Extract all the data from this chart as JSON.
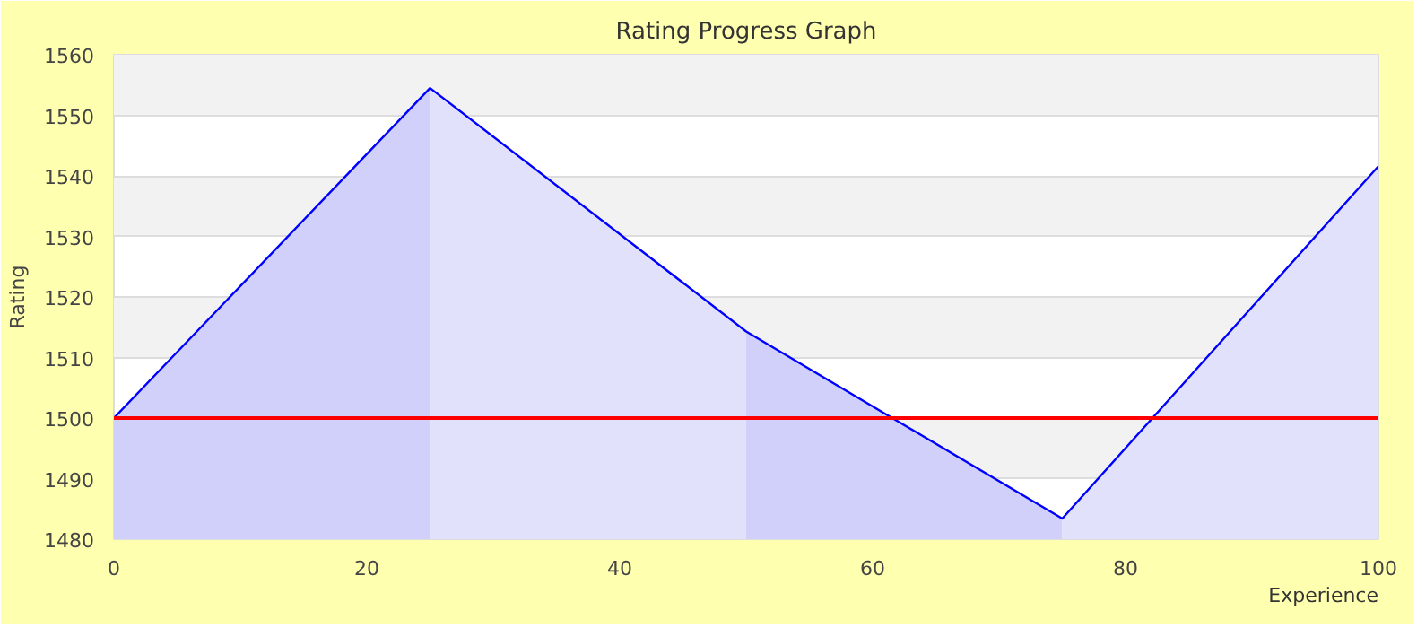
{
  "chart_data": {
    "type": "line",
    "title": "Rating Progress Graph",
    "xlabel": "Experience",
    "ylabel": "Rating",
    "x": [
      0,
      25,
      50,
      75,
      100
    ],
    "series": [
      {
        "type": "area",
        "color": "#d0d0fa",
        "x": [
          0,
          25
        ],
        "values": [
          1500,
          1554.5
        ]
      },
      {
        "type": "area",
        "color": "#e1e1fb",
        "x": [
          25,
          50
        ],
        "values": [
          1554.5,
          1514.3
        ]
      },
      {
        "type": "area",
        "color": "#d0d0fa",
        "x": [
          50,
          75
        ],
        "values": [
          1514.3,
          1483.4
        ]
      },
      {
        "type": "area",
        "color": "#e1e1fb",
        "x": [
          75,
          100
        ],
        "values": [
          1483.4,
          1541.6
        ]
      },
      {
        "color": "#0000ff",
        "values": [
          1500,
          1554.5,
          1514.3,
          1483.4,
          1541.6
        ]
      }
    ],
    "xlim": [
      0,
      100
    ],
    "xticks": [
      0,
      20,
      40,
      60,
      80,
      100
    ],
    "ylim": [
      1480,
      1560
    ],
    "yticks": [
      1480,
      1490,
      1500,
      1510,
      1520,
      1530,
      1540,
      1550,
      1560
    ],
    "ref_lines": [
      {
        "axis": "y",
        "value": 1500,
        "color": "#ff0000"
      }
    ],
    "grid": "y"
  }
}
